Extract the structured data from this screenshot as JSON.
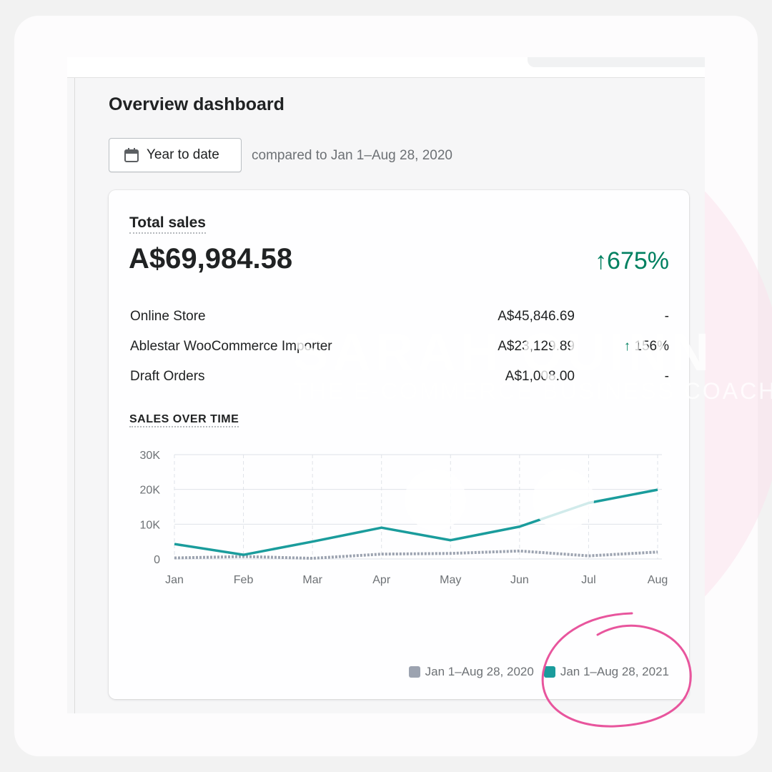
{
  "page": {
    "title": "Overview dashboard"
  },
  "date_filter": {
    "button_label": "Year to date",
    "button_icon": "calendar-icon",
    "comparison": "compared to Jan 1–Aug 28, 2020"
  },
  "total_sales": {
    "title": "Total sales",
    "value": "A$69,984.58",
    "change": "675%",
    "change_direction": "up",
    "change_color": "#008060",
    "breakdown": [
      {
        "name": "Online Store",
        "amount": "A$45,846.69",
        "change": "-"
      },
      {
        "name": "Ablestar WooCommerce Importer",
        "amount": "A$23,129.89",
        "change": "156%",
        "change_direction": "up"
      },
      {
        "name": "Draft Orders",
        "amount": "A$1,008.00",
        "change": "-"
      }
    ]
  },
  "sales_over_time": {
    "label": "SALES OVER TIME"
  },
  "chart_data": {
    "type": "line",
    "categories": [
      "Jan",
      "Feb",
      "Mar",
      "Apr",
      "May",
      "Jun",
      "Jul",
      "Aug"
    ],
    "y_ticks": [
      "30K",
      "20K",
      "10K",
      "0"
    ],
    "ylim": [
      0,
      30000
    ],
    "grid": true,
    "legend_position": "bottom-right",
    "series": [
      {
        "name": "Jan 1–Aug 28, 2020",
        "color": "#9ca3b0",
        "style": "dotted",
        "values": [
          300,
          700,
          200,
          1400,
          1600,
          2300,
          900,
          2000
        ]
      },
      {
        "name": "Jan 1–Aug 28, 2021",
        "color": "#1a9c9c",
        "style": "solid",
        "values": [
          4300,
          1200,
          5000,
          9000,
          5400,
          9300,
          16100,
          19900
        ]
      }
    ]
  },
  "watermark": {
    "line1": "SARAH QUINN",
    "line2": "THE E-COMMERCE BUSINESS COACH"
  }
}
